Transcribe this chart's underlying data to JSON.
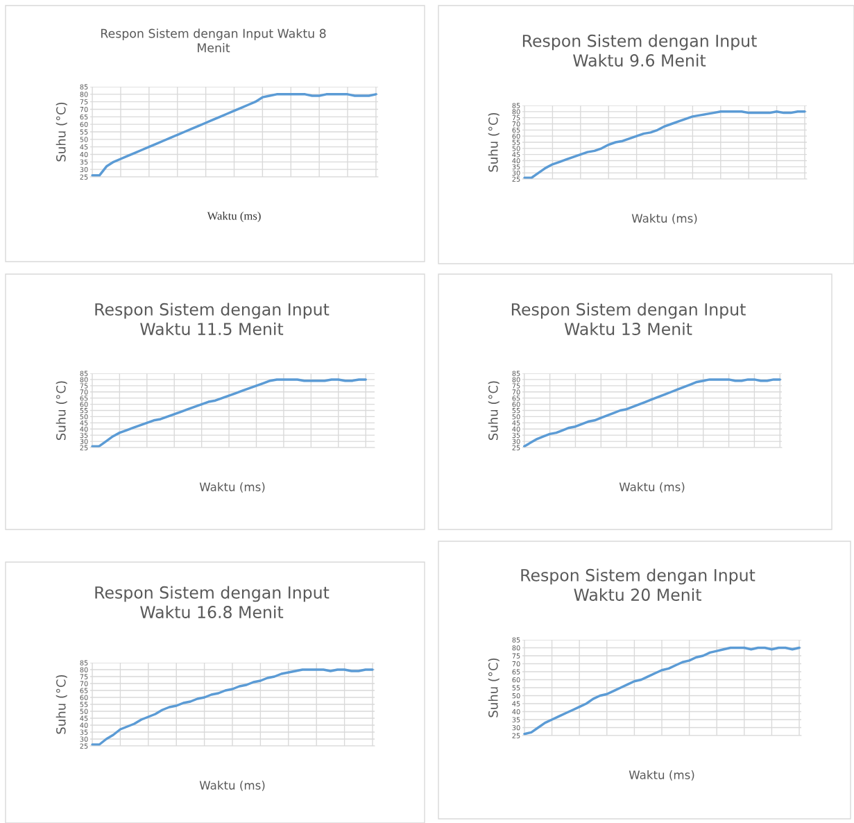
{
  "chart_data": [
    {
      "type": "line",
      "title": "Respon Sistem dengan Input Waktu 8\nMenit",
      "xlabel": "Waktu (ms)",
      "ylabel": "Suhu (°C)",
      "categories": [
        null,
        null,
        null,
        null,
        null,
        null,
        null,
        null,
        null,
        null,
        null,
        null,
        null,
        null,
        null,
        null,
        null,
        null,
        null,
        null,
        null,
        null,
        null,
        null,
        null,
        null,
        null,
        null,
        null,
        null,
        null,
        null,
        null,
        null,
        null,
        null,
        null,
        null,
        null,
        null,
        null
      ],
      "series": [
        {
          "color": "#5b9bd5",
          "values": [
            26,
            26,
            32,
            35,
            37,
            39,
            41,
            43,
            45,
            47,
            49,
            51,
            53,
            55,
            57,
            59,
            61,
            63,
            65,
            67,
            69,
            71,
            73,
            75,
            78,
            79,
            80,
            80,
            80,
            80,
            80,
            79,
            79,
            80,
            80,
            80,
            80,
            79,
            79,
            79,
            80
          ]
        }
      ],
      "ylim": [
        25,
        85
      ],
      "yticks": [
        25,
        30,
        35,
        40,
        45,
        50,
        55,
        60,
        65,
        70,
        75,
        80,
        85
      ],
      "grid": true,
      "tick_labels": "y",
      "marker": "none",
      "line_style": "solid"
    },
    {
      "type": "line",
      "title": "Respon Sistem dengan Input\nWaktu 9.6 Menit",
      "xlabel": "Waktu (ms)",
      "ylabel": "Suhu (°C)",
      "categories": [
        null,
        null,
        null,
        null,
        null,
        null,
        null,
        null,
        null,
        null,
        null,
        null,
        null,
        null,
        null,
        null,
        null,
        null,
        null,
        null,
        null,
        null,
        null,
        null,
        null,
        null,
        null,
        null,
        null,
        null,
        null,
        null,
        null,
        null,
        null,
        null,
        null,
        null,
        null,
        null,
        null
      ],
      "series": [
        {
          "color": "#5b9bd5",
          "values": [
            26,
            26,
            30,
            34,
            37,
            39,
            41,
            43,
            45,
            47,
            48,
            50,
            53,
            55,
            56,
            58,
            60,
            62,
            63,
            65,
            68,
            70,
            72,
            74,
            76,
            77,
            78,
            79,
            80,
            80,
            80,
            80,
            79,
            79,
            79,
            79,
            80,
            79,
            79,
            80,
            80
          ]
        }
      ],
      "ylim": [
        25,
        85
      ],
      "yticks": [
        25,
        30,
        35,
        40,
        45,
        50,
        55,
        60,
        65,
        70,
        75,
        80,
        85
      ],
      "grid": true,
      "tick_labels": "y",
      "marker": "none",
      "line_style": "solid"
    },
    {
      "type": "line",
      "title": "Respon Sistem dengan Input\nWaktu 11.5 Menit",
      "xlabel": "Waktu (ms)",
      "ylabel": "Suhu (°C)",
      "categories": [
        null,
        null,
        null,
        null,
        null,
        null,
        null,
        null,
        null,
        null,
        null,
        null,
        null,
        null,
        null,
        null,
        null,
        null,
        null,
        null,
        null,
        null,
        null,
        null,
        null,
        null,
        null,
        null,
        null,
        null,
        null,
        null,
        null,
        null,
        null,
        null,
        null,
        null,
        null,
        null,
        null,
        null
      ],
      "series": [
        {
          "color": "#5b9bd5",
          "values": [
            26,
            26,
            30,
            34,
            37,
            39,
            41,
            43,
            45,
            47,
            48,
            50,
            52,
            54,
            56,
            58,
            60,
            62,
            63,
            65,
            67,
            69,
            71,
            73,
            75,
            77,
            79,
            80,
            80,
            80,
            80,
            79,
            79,
            79,
            79,
            80,
            80,
            79,
            79,
            80,
            80,
            null
          ]
        }
      ],
      "ylim": [
        25,
        85
      ],
      "yticks": [
        25,
        30,
        35,
        40,
        45,
        50,
        55,
        60,
        65,
        70,
        75,
        80,
        85
      ],
      "grid": true,
      "tick_labels": "y",
      "marker": "none",
      "line_style": "solid"
    },
    {
      "type": "line",
      "title": "Respon Sistem dengan Input\nWaktu 13 Menit",
      "xlabel": "Waktu (ms)",
      "ylabel": "Suhu (°C)",
      "categories": [
        null,
        null,
        null,
        null,
        null,
        null,
        null,
        null,
        null,
        null,
        null,
        null,
        null,
        null,
        null,
        null,
        null,
        null,
        null,
        null,
        null,
        null,
        null,
        null,
        null,
        null,
        null,
        null,
        null,
        null,
        null,
        null,
        null,
        null,
        null,
        null,
        null,
        null,
        null,
        null,
        null
      ],
      "series": [
        {
          "color": "#5b9bd5",
          "values": [
            26,
            29,
            32,
            34,
            36,
            37,
            39,
            41,
            42,
            44,
            46,
            47,
            49,
            51,
            53,
            55,
            56,
            58,
            60,
            62,
            64,
            66,
            68,
            70,
            72,
            74,
            76,
            78,
            79,
            80,
            80,
            80,
            80,
            79,
            79,
            80,
            80,
            79,
            79,
            80,
            80
          ]
        }
      ],
      "ylim": [
        25,
        85
      ],
      "yticks": [
        25,
        30,
        35,
        40,
        45,
        50,
        55,
        60,
        65,
        70,
        75,
        80,
        85
      ],
      "grid": true,
      "tick_labels": "y",
      "marker": "none",
      "line_style": "solid"
    },
    {
      "type": "line",
      "title": "Respon Sistem dengan Input\nWaktu 16.8 Menit",
      "xlabel": "Waktu (ms)",
      "ylabel": "Suhu (°C)",
      "categories": [
        null,
        null,
        null,
        null,
        null,
        null,
        null,
        null,
        null,
        null,
        null,
        null,
        null,
        null,
        null,
        null,
        null,
        null,
        null,
        null,
        null,
        null,
        null,
        null,
        null,
        null,
        null,
        null,
        null,
        null,
        null,
        null,
        null,
        null,
        null,
        null,
        null,
        null,
        null,
        null,
        null
      ],
      "series": [
        {
          "color": "#5b9bd5",
          "values": [
            26,
            26,
            30,
            33,
            37,
            39,
            41,
            44,
            46,
            48,
            51,
            53,
            54,
            56,
            57,
            59,
            60,
            62,
            63,
            65,
            66,
            68,
            69,
            71,
            72,
            74,
            75,
            77,
            78,
            79,
            80,
            80,
            80,
            80,
            79,
            80,
            80,
            79,
            79,
            80,
            80
          ]
        }
      ],
      "ylim": [
        25,
        85
      ],
      "yticks": [
        25,
        30,
        35,
        40,
        45,
        50,
        55,
        60,
        65,
        70,
        75,
        80,
        85
      ],
      "grid": true,
      "tick_labels": "y",
      "marker": "none",
      "line_style": "solid"
    },
    {
      "type": "line",
      "title": "Respon Sistem dengan Input\nWaktu 20 Menit",
      "xlabel": "Waktu (ms)",
      "ylabel": "Suhu (°C)",
      "categories": [
        null,
        null,
        null,
        null,
        null,
        null,
        null,
        null,
        null,
        null,
        null,
        null,
        null,
        null,
        null,
        null,
        null,
        null,
        null,
        null,
        null,
        null,
        null,
        null,
        null,
        null,
        null,
        null,
        null,
        null,
        null,
        null,
        null,
        null,
        null,
        null,
        null,
        null,
        null,
        null,
        null
      ],
      "series": [
        {
          "color": "#5b9bd5",
          "values": [
            26,
            27,
            30,
            33,
            35,
            37,
            39,
            41,
            43,
            45,
            48,
            50,
            51,
            53,
            55,
            57,
            59,
            60,
            62,
            64,
            66,
            67,
            69,
            71,
            72,
            74,
            75,
            77,
            78,
            79,
            80,
            80,
            80,
            79,
            80,
            80,
            79,
            80,
            80,
            79,
            80
          ]
        }
      ],
      "ylim": [
        25,
        85
      ],
      "yticks": [
        25,
        30,
        35,
        40,
        45,
        50,
        55,
        60,
        65,
        70,
        75,
        80,
        85
      ],
      "grid": true,
      "tick_labels": "y",
      "marker": "none",
      "line_style": "solid"
    }
  ]
}
